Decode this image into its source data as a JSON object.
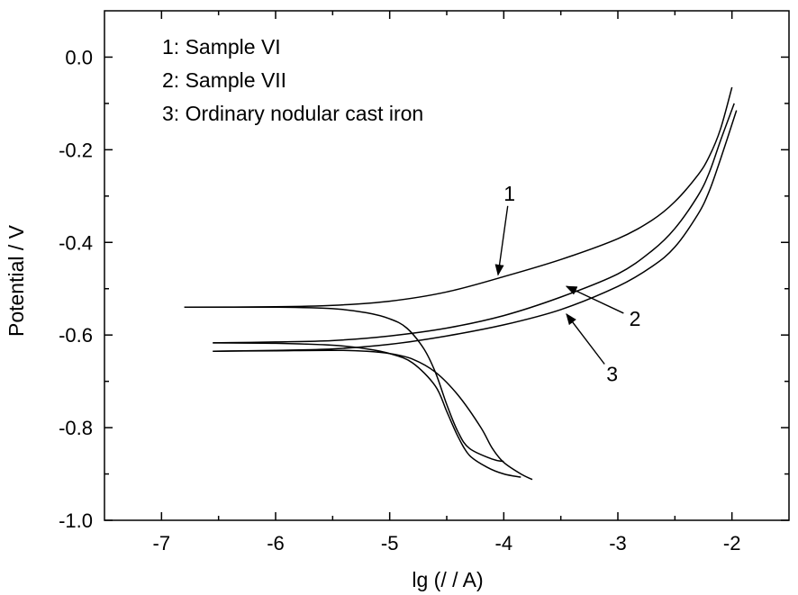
{
  "chart_data": {
    "type": "line",
    "xlabel": "lg (/ / A)",
    "ylabel": "Potential / V",
    "xlim": [
      -7.5,
      -1.5
    ],
    "ylim": [
      -1.0,
      0.1
    ],
    "x_ticks": [
      -7,
      -6,
      -5,
      -4,
      -3,
      -2
    ],
    "x_tick_labels": [
      "-7",
      "-6",
      "-5",
      "-4",
      "-3",
      "-2"
    ],
    "y_ticks": [
      -1.0,
      -0.8,
      -0.6,
      -0.4,
      -0.2,
      0.0
    ],
    "y_tick_labels": [
      "-1.0",
      "-0.8",
      "-0.6",
      "-0.4",
      "-0.2",
      "0.0"
    ],
    "grid": false,
    "legend": {
      "placement": "top-left",
      "entries": [
        "1: Sample VI",
        "2: Sample VII",
        "3: Ordinary nodular cast iron"
      ]
    },
    "annotations": [
      {
        "label": "1",
        "text_at": [
          -3.95,
          -0.31
        ],
        "arrow_to": [
          -4.05,
          -0.47
        ]
      },
      {
        "label": "2",
        "text_at": [
          -2.85,
          -0.58
        ],
        "arrow_to": [
          -3.45,
          -0.495
        ]
      },
      {
        "label": "3",
        "text_at": [
          -3.05,
          -0.7
        ],
        "arrow_to": [
          -3.45,
          -0.555
        ]
      }
    ],
    "series": [
      {
        "label": "1",
        "anodic": [
          [
            -6.8,
            -0.54
          ],
          [
            -6.0,
            -0.539
          ],
          [
            -5.5,
            -0.536
          ],
          [
            -5.0,
            -0.527
          ],
          [
            -4.5,
            -0.507
          ],
          [
            -4.0,
            -0.474
          ],
          [
            -3.5,
            -0.437
          ],
          [
            -3.0,
            -0.392
          ],
          [
            -2.7,
            -0.352
          ],
          [
            -2.5,
            -0.312
          ],
          [
            -2.3,
            -0.255
          ],
          [
            -2.2,
            -0.215
          ],
          [
            -2.1,
            -0.155
          ],
          [
            -2.0,
            -0.065
          ]
        ],
        "cathodic": [
          [
            -6.8,
            -0.54
          ],
          [
            -6.0,
            -0.54
          ],
          [
            -5.5,
            -0.543
          ],
          [
            -5.2,
            -0.552
          ],
          [
            -5.0,
            -0.565
          ],
          [
            -4.85,
            -0.585
          ],
          [
            -4.7,
            -0.63
          ],
          [
            -4.6,
            -0.68
          ],
          [
            -4.5,
            -0.75
          ],
          [
            -4.4,
            -0.81
          ],
          [
            -4.3,
            -0.845
          ],
          [
            -4.1,
            -0.868
          ],
          [
            -4.0,
            -0.873
          ]
        ]
      },
      {
        "label": "2",
        "anodic": [
          [
            -6.55,
            -0.617
          ],
          [
            -6.0,
            -0.615
          ],
          [
            -5.5,
            -0.612
          ],
          [
            -5.0,
            -0.602
          ],
          [
            -4.5,
            -0.585
          ],
          [
            -4.0,
            -0.558
          ],
          [
            -3.5,
            -0.518
          ],
          [
            -3.0,
            -0.468
          ],
          [
            -2.7,
            -0.418
          ],
          [
            -2.5,
            -0.37
          ],
          [
            -2.3,
            -0.3
          ],
          [
            -2.2,
            -0.25
          ],
          [
            -2.1,
            -0.18
          ],
          [
            -1.98,
            -0.1
          ]
        ],
        "cathodic": [
          [
            -6.55,
            -0.617
          ],
          [
            -6.0,
            -0.618
          ],
          [
            -5.5,
            -0.622
          ],
          [
            -5.2,
            -0.63
          ],
          [
            -5.0,
            -0.64
          ],
          [
            -4.8,
            -0.66
          ],
          [
            -4.6,
            -0.71
          ],
          [
            -4.5,
            -0.765
          ],
          [
            -4.4,
            -0.82
          ],
          [
            -4.3,
            -0.86
          ],
          [
            -4.15,
            -0.885
          ],
          [
            -4.0,
            -0.9
          ],
          [
            -3.85,
            -0.907
          ]
        ]
      },
      {
        "label": "3",
        "anodic": [
          [
            -6.55,
            -0.635
          ],
          [
            -6.0,
            -0.633
          ],
          [
            -5.5,
            -0.63
          ],
          [
            -5.0,
            -0.62
          ],
          [
            -4.5,
            -0.602
          ],
          [
            -4.0,
            -0.578
          ],
          [
            -3.5,
            -0.545
          ],
          [
            -3.0,
            -0.495
          ],
          [
            -2.7,
            -0.452
          ],
          [
            -2.5,
            -0.41
          ],
          [
            -2.3,
            -0.34
          ],
          [
            -2.2,
            -0.29
          ],
          [
            -2.1,
            -0.22
          ],
          [
            -1.96,
            -0.115
          ]
        ],
        "cathodic": [
          [
            -6.55,
            -0.635
          ],
          [
            -6.0,
            -0.634
          ],
          [
            -5.5,
            -0.633
          ],
          [
            -5.2,
            -0.635
          ],
          [
            -5.0,
            -0.64
          ],
          [
            -4.8,
            -0.652
          ],
          [
            -4.6,
            -0.68
          ],
          [
            -4.4,
            -0.73
          ],
          [
            -4.2,
            -0.8
          ],
          [
            -4.1,
            -0.845
          ],
          [
            -4.0,
            -0.875
          ],
          [
            -3.85,
            -0.9
          ],
          [
            -3.75,
            -0.912
          ]
        ]
      }
    ]
  }
}
